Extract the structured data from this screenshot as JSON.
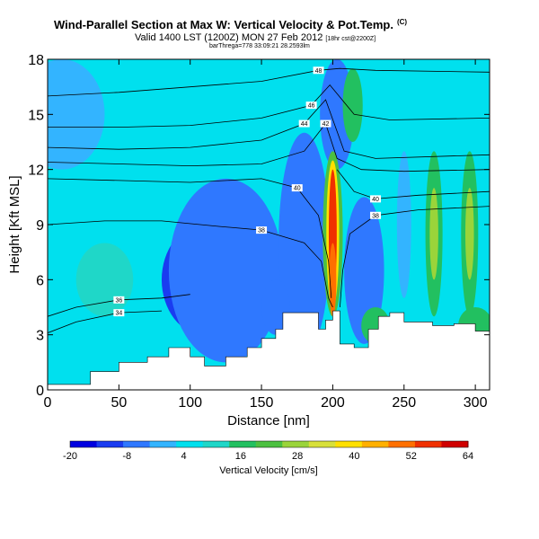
{
  "chart_data": {
    "type": "heatmap",
    "title": "Wind-Parallel Section at Max W: Vertical Velocity & Pot.Temp.",
    "title_mark": "(C)",
    "subtitle": "Valid 1400 LST (1200Z) MON 27 Feb 2012",
    "subtitle_note": "[18hr cst@2200Z]",
    "attribution": "barThrega=778 33:09:21 28.2593lm",
    "xlabel": "Distance [nm]",
    "ylabel": "Height [Kft MSL]",
    "xlim": [
      0,
      310
    ],
    "ylim": [
      0,
      18
    ],
    "xticks": [
      "0",
      "50",
      "100",
      "150",
      "200",
      "250",
      "300"
    ],
    "yticks": [
      "0",
      "3",
      "6",
      "9",
      "12",
      "15",
      "18"
    ],
    "colorbar": {
      "label": "Vertical Velocity [cm/s]",
      "ticks": [
        "-20",
        "-8",
        "4",
        "16",
        "28",
        "40",
        "52",
        "64"
      ],
      "range": [
        -20,
        64
      ],
      "colors": [
        "#0000e0",
        "#1a3cf0",
        "#2f78ff",
        "#33b4ff",
        "#00e0ee",
        "#1fd7c8",
        "#22c060",
        "#4cc040",
        "#9ad43a",
        "#d8e03a",
        "#ffe000",
        "#ffb000",
        "#ff7000",
        "#f03000",
        "#d00000"
      ]
    },
    "field": {
      "background_value": 4,
      "features": [
        {
          "x": 100,
          "y": 5.5,
          "rx": 8,
          "ry": 1.5,
          "value": -20
        },
        {
          "x": 110,
          "y": 6,
          "rx": 30,
          "ry": 3,
          "value": -13
        },
        {
          "x": 125,
          "y": 6.5,
          "rx": 40,
          "ry": 5,
          "value": -6
        },
        {
          "x": 175,
          "y": 9,
          "rx": 10,
          "ry": 3.5,
          "value": -13
        },
        {
          "x": 180,
          "y": 8,
          "rx": 18,
          "ry": 6,
          "value": -6
        },
        {
          "x": 225,
          "y": 5.5,
          "rx": 9,
          "ry": 2.5,
          "value": -11
        },
        {
          "x": 222,
          "y": 6.5,
          "rx": 14,
          "ry": 4,
          "value": -6
        },
        {
          "x": 160,
          "y": 4.5,
          "rx": 10,
          "ry": 1.5,
          "value": -6
        },
        {
          "x": 203,
          "y": 15,
          "rx": 12,
          "ry": 3,
          "value": -6
        },
        {
          "x": 250,
          "y": 9,
          "rx": 5,
          "ry": 4,
          "value": -2
        },
        {
          "x": 200,
          "y": 8.5,
          "rx": 7,
          "ry": 4.5,
          "value": 22
        },
        {
          "x": 200,
          "y": 8.5,
          "rx": 4.5,
          "ry": 4,
          "value": 40
        },
        {
          "x": 200,
          "y": 8.5,
          "rx": 2.8,
          "ry": 3.5,
          "value": 58
        },
        {
          "x": 200,
          "y": 6,
          "rx": 2.5,
          "ry": 2,
          "value": 52
        },
        {
          "x": 271,
          "y": 8.5,
          "rx": 6,
          "ry": 4.5,
          "value": 14
        },
        {
          "x": 271,
          "y": 8.5,
          "rx": 3,
          "ry": 2.5,
          "value": 26
        },
        {
          "x": 296,
          "y": 8.5,
          "rx": 6,
          "ry": 4.5,
          "value": 14
        },
        {
          "x": 296,
          "y": 8.5,
          "rx": 3,
          "ry": 2.5,
          "value": 26
        },
        {
          "x": 214,
          "y": 15.5,
          "rx": 7,
          "ry": 2,
          "value": 14
        },
        {
          "x": 300,
          "y": 3.5,
          "rx": 12,
          "ry": 1,
          "value": 14
        },
        {
          "x": 230,
          "y": 3.5,
          "rx": 10,
          "ry": 1,
          "value": 14
        },
        {
          "x": 40,
          "y": 6,
          "rx": 20,
          "ry": 2,
          "value": 8
        },
        {
          "x": 10,
          "y": 15,
          "rx": 30,
          "ry": 3,
          "value": 2
        }
      ]
    },
    "terrain": [
      [
        0,
        0.3
      ],
      [
        20,
        0.3
      ],
      [
        30,
        1
      ],
      [
        50,
        1.5
      ],
      [
        70,
        1.8
      ],
      [
        85,
        2.3
      ],
      [
        95,
        2.3
      ],
      [
        100,
        1.8
      ],
      [
        110,
        1.3
      ],
      [
        117,
        1.3
      ],
      [
        125,
        1.8
      ],
      [
        140,
        2.3
      ],
      [
        150,
        2.8
      ],
      [
        160,
        3.3
      ],
      [
        165,
        4.2
      ],
      [
        180,
        4.2
      ],
      [
        190,
        3.3
      ],
      [
        195,
        3.8
      ],
      [
        200,
        4.3
      ],
      [
        205,
        2.5
      ],
      [
        215,
        2.3
      ],
      [
        222,
        2.3
      ],
      [
        225,
        3.3
      ],
      [
        232,
        4.0
      ],
      [
        240,
        4.2
      ],
      [
        250,
        3.7
      ],
      [
        260,
        3.7
      ],
      [
        270,
        3.5
      ],
      [
        285,
        3.6
      ],
      [
        300,
        3.2
      ],
      [
        310,
        3.0
      ]
    ],
    "isentropes": [
      {
        "label": "34",
        "pts": [
          [
            0,
            3.1
          ],
          [
            20,
            3.7
          ],
          [
            50,
            4.2
          ],
          [
            80,
            4.3
          ]
        ]
      },
      {
        "label": "36",
        "pts": [
          [
            0,
            4.0
          ],
          [
            20,
            4.5
          ],
          [
            50,
            4.9
          ],
          [
            80,
            5.0
          ],
          [
            100,
            5.2
          ]
        ]
      },
      {
        "label": "38",
        "pts": [
          [
            0,
            9.0
          ],
          [
            40,
            9.2
          ],
          [
            80,
            9.2
          ],
          [
            120,
            8.9
          ],
          [
            150,
            8.7
          ],
          [
            180,
            8.0
          ],
          [
            192,
            7.0
          ],
          [
            197,
            5.0
          ],
          [
            200,
            4.5
          ]
        ]
      },
      {
        "label": "38",
        "pts": [
          [
            205,
            4.5
          ],
          [
            207,
            6.5
          ],
          [
            212,
            8.5
          ],
          [
            230,
            9.5
          ],
          [
            260,
            9.8
          ],
          [
            310,
            10
          ]
        ]
      },
      {
        "label": "40",
        "pts": [
          [
            0,
            11.5
          ],
          [
            50,
            11.4
          ],
          [
            100,
            11.3
          ],
          [
            150,
            11.5
          ],
          [
            175,
            11.0
          ],
          [
            190,
            9.5
          ],
          [
            197,
            7.0
          ],
          [
            199,
            5.0
          ]
        ]
      },
      {
        "label": "40",
        "pts": [
          [
            203,
            12.0
          ],
          [
            215,
            10.8
          ],
          [
            230,
            10.4
          ],
          [
            260,
            10.6
          ],
          [
            310,
            10.8
          ]
        ]
      },
      {
        "label": "42",
        "pts": [
          [
            0,
            12.4
          ],
          [
            50,
            12.3
          ],
          [
            100,
            12.2
          ],
          [
            150,
            12.3
          ],
          [
            180,
            13.0
          ],
          [
            195,
            14.5
          ],
          [
            203,
            12.6
          ],
          [
            220,
            12.0
          ],
          [
            250,
            11.9
          ],
          [
            310,
            12.0
          ]
        ]
      },
      {
        "label": "44",
        "pts": [
          [
            0,
            13.2
          ],
          [
            50,
            13.1
          ],
          [
            100,
            13.2
          ],
          [
            150,
            13.6
          ],
          [
            180,
            14.5
          ],
          [
            195,
            15.8
          ],
          [
            208,
            13.0
          ],
          [
            230,
            12.6
          ],
          [
            310,
            12.8
          ]
        ]
      },
      {
        "label": "46",
        "pts": [
          [
            0,
            14.3
          ],
          [
            50,
            14.3
          ],
          [
            100,
            14.4
          ],
          [
            150,
            14.8
          ],
          [
            185,
            15.5
          ],
          [
            198,
            16.6
          ],
          [
            215,
            15.0
          ],
          [
            240,
            14.7
          ],
          [
            310,
            14.8
          ]
        ]
      },
      {
        "label": "48",
        "pts": [
          [
            0,
            16.0
          ],
          [
            50,
            16.2
          ],
          [
            100,
            16.5
          ],
          [
            150,
            16.8
          ],
          [
            190,
            17.4
          ],
          [
            205,
            17.5
          ],
          [
            230,
            17.4
          ],
          [
            310,
            17.3
          ]
        ]
      }
    ]
  }
}
